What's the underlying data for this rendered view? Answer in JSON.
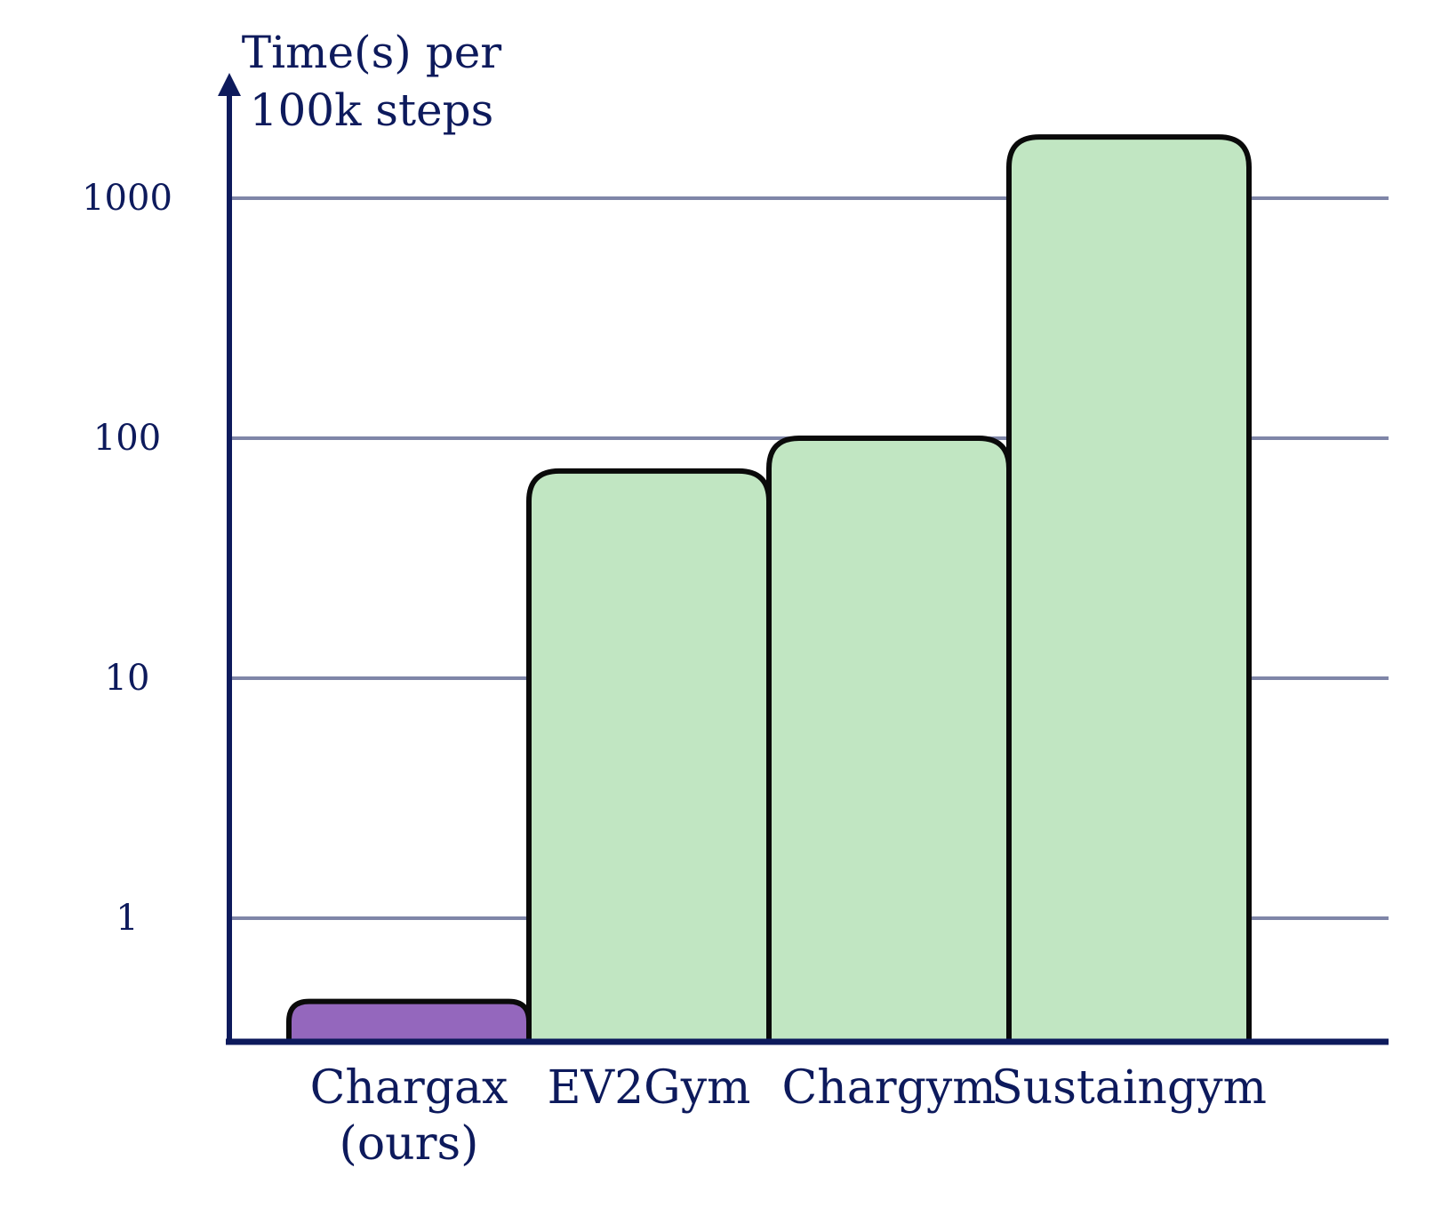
{
  "chart_data": {
    "type": "bar",
    "title": "",
    "xlabel": "",
    "ylabel_lines": [
      "Time(s) per",
      "100k steps"
    ],
    "yscale": "log",
    "ylim": [
      0.3,
      3000
    ],
    "yticks": [
      1,
      10,
      100,
      1000
    ],
    "ytick_labels": [
      "1",
      "10",
      "100",
      "1000"
    ],
    "grid": true,
    "categories": [
      {
        "lines": [
          "Chargax",
          "(ours)"
        ]
      },
      {
        "lines": [
          "EV2Gym"
        ]
      },
      {
        "lines": [
          "Chargym"
        ]
      },
      {
        "lines": [
          "Sustaingym"
        ]
      }
    ],
    "values": [
      0.45,
      73,
      100,
      1800
    ],
    "bar_colors": [
      "#9467bd",
      "#c1e6c2",
      "#c1e6c2",
      "#c1e6c2"
    ]
  },
  "colors": {
    "axis": "#0d1a5c",
    "grid": "#7f86a8",
    "bar_outline": "#0a0a0a",
    "text": "#0d1a5c"
  }
}
